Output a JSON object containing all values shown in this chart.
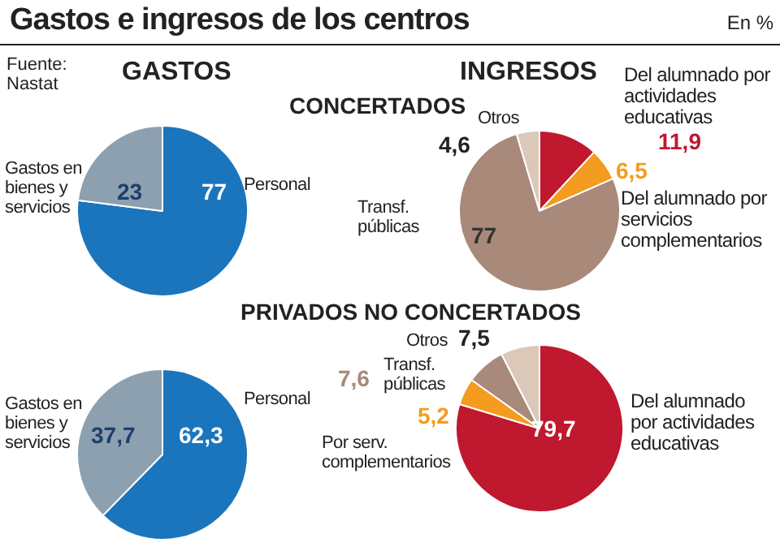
{
  "chart_data": [
    {
      "type": "pie",
      "title": "Gastos e ingresos de los centros",
      "annotations": [
        "Fuente: Nastat",
        "GASTOS"
      ],
      "categories": [
        "Personal",
        "Gastos en bienes y servicios"
      ],
      "values": [
        77,
        23
      ],
      "colors": [
        "#1b75bc",
        "#8ca0b0"
      ],
      "value_labels": [
        "77",
        "23"
      ]
    },
    {
      "type": "pie",
      "title": "CONCERTADOS",
      "subtitle": "En %",
      "annotations": [
        "INGRESOS"
      ],
      "categories": [
        "Del alumnado por actividades educativas",
        "Del alumnado por servicios complementarios",
        "Transf. públicas",
        "Otros"
      ],
      "values": [
        11.9,
        6.5,
        77,
        4.6
      ],
      "colors": [
        "#c0182f",
        "#f39c1f",
        "#a8897a",
        "#dcc8b8"
      ],
      "value_labels": [
        "11,9",
        "6,5",
        "77",
        "4,6"
      ]
    },
    {
      "type": "pie",
      "categories": [
        "Personal",
        "Gastos en bienes y servicios"
      ],
      "values": [
        62.3,
        37.7
      ],
      "colors": [
        "#1b75bc",
        "#8ca0b0"
      ],
      "value_labels": [
        "62,3",
        "37,7"
      ]
    },
    {
      "type": "pie",
      "title": "PRIVADOS NO CONCERTADOS",
      "categories": [
        "Del alumnado por actividades educativas",
        "Por serv. complementarios",
        "Transf. públicas",
        "Otros"
      ],
      "values": [
        79.7,
        5.2,
        7.6,
        7.5
      ],
      "colors": [
        "#c0182f",
        "#f39c1f",
        "#a8897a",
        "#dcc8b8"
      ],
      "value_labels": [
        "79,7",
        "5,2",
        "7,6",
        "7,5"
      ]
    }
  ]
}
